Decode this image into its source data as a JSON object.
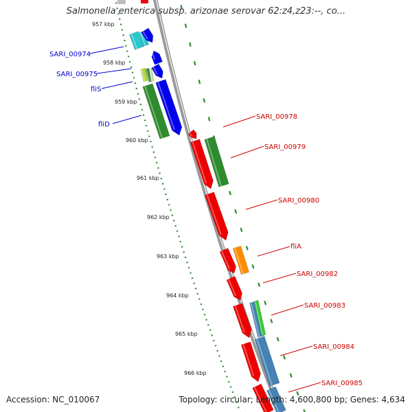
{
  "title": "Salmonella enterica subsp. arizonae serovar 62:z4,z23:--, co...",
  "accession": "Accession: NC_010067",
  "stats": "Topology: circular; Length: 4,600,800 bp; Genes: 4,634",
  "colors": {
    "backbone": "#8c8c8c",
    "ring_dots": "#2d8a2d",
    "left_label": "#0000cc",
    "right_label": "#cc0000",
    "red": "#ee0000",
    "blue": "#0000ee",
    "green": "#2e8b2e",
    "cyan": "#29c6cc",
    "orange": "#ff8c00",
    "steel": "#4682b4",
    "lime": "#33cc33",
    "olive": "#b8d633"
  },
  "ticks": [
    "957 kbp",
    "958 kbp",
    "959 kbp",
    "960 kbp",
    "961 kbp",
    "962 kbp",
    "963 kbp",
    "964 kbp",
    "965 kbp",
    "966 kbp"
  ],
  "left_labels": [
    "SARI_00974",
    "SARI_00975",
    "fliS",
    "fliD"
  ],
  "right_labels": [
    "SARI_00978",
    "SARI_00979",
    "SARI_00980",
    "fliA",
    "SARI_00982",
    "SARI_00983",
    "SARI_00984",
    "SARI_00985"
  ]
}
